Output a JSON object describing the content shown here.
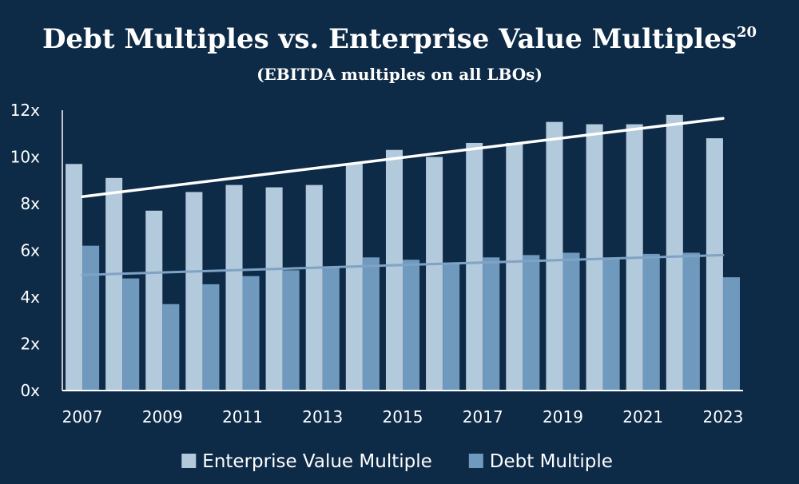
{
  "chart_data": {
    "type": "bar",
    "title": "Debt Multiples vs. Enterprise Value Multiples",
    "title_superscript": "20",
    "subtitle": "(EBITDA multiples on all LBOs)",
    "xlabel": "",
    "ylabel": "",
    "ylim": [
      0,
      12
    ],
    "y_ticks": [
      "0x",
      "2x",
      "4x",
      "6x",
      "8x",
      "10x",
      "12x"
    ],
    "y_tick_values": [
      0,
      2,
      4,
      6,
      8,
      10,
      12
    ],
    "categories": [
      "2007",
      "2008",
      "2009",
      "2010",
      "2011",
      "2012",
      "2013",
      "2014",
      "2015",
      "2016",
      "2017",
      "2018",
      "2019",
      "2020",
      "2021",
      "2022",
      "2023"
    ],
    "x_tick_labels": [
      "2007",
      "2009",
      "2011",
      "2013",
      "2015",
      "2017",
      "2019",
      "2021",
      "2023"
    ],
    "series": [
      {
        "name": "Enterprise Value Multiple",
        "color": "#b3c9dc",
        "values": [
          9.7,
          9.1,
          7.7,
          8.5,
          8.8,
          8.7,
          8.8,
          9.7,
          10.3,
          10.0,
          10.6,
          10.6,
          11.5,
          11.4,
          11.4,
          11.8,
          10.8
        ],
        "trendline": {
          "start": 8.3,
          "end": 11.65,
          "color": "#ffffff"
        }
      },
      {
        "name": "Debt Multiple",
        "color": "#6f9abd",
        "values": [
          6.2,
          4.8,
          3.7,
          4.55,
          4.9,
          5.15,
          5.3,
          5.7,
          5.6,
          5.45,
          5.7,
          5.8,
          5.9,
          5.7,
          5.85,
          5.9,
          4.85
        ],
        "trendline": {
          "start": 4.95,
          "end": 5.8,
          "color": "#7fa3c4"
        }
      }
    ],
    "legend": {
      "position": "bottom",
      "swatch_shape": "square"
    },
    "grid": false
  }
}
